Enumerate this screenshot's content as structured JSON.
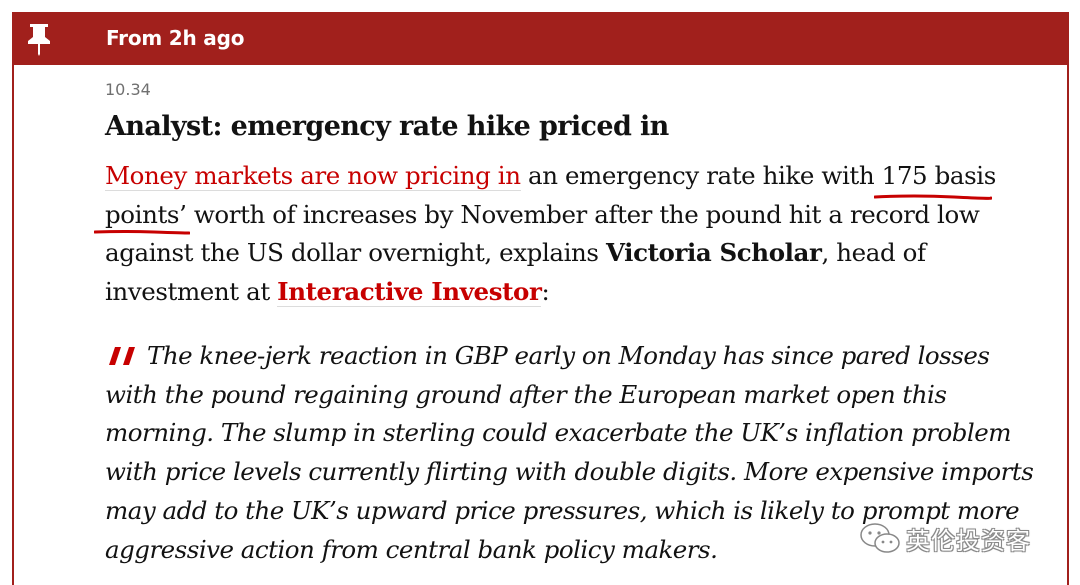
{
  "header": {
    "label": "From 2h ago",
    "icon": "pin-icon",
    "color": "#a1201c"
  },
  "post": {
    "timestamp": "10.34",
    "headline": "Analyst: emergency rate hike priced in",
    "body": {
      "link1": "Money markets are now pricing in",
      "text1": " an emergency rate hike with ",
      "highlight1": "175 basis",
      "highlight2": "points’",
      "text2": " worth of increases by November after the pound hit a record low against the US dollar overnight, explains ",
      "name": "Victoria Scholar",
      "text3": ", head of investment at ",
      "link2": "Interactive Investor",
      "text4": ":"
    },
    "quote": {
      "icon": "quote-mark-icon",
      "text": "The knee-jerk reaction in GBP early on Monday has since pared losses with the pound regaining ground after the European market open this morning. The slump in sterling could exacerbate the UK’s inflation problem with price levels currently flirting with double digits. More expensive imports may add to the UK’s upward price pressures, which is likely to prompt more aggressive action from central bank policy makers."
    },
    "link_color": "#c70000",
    "annotation_color": "#c70000"
  },
  "watermark": {
    "icon": "wechat-icon",
    "text": "英伦投资客"
  }
}
